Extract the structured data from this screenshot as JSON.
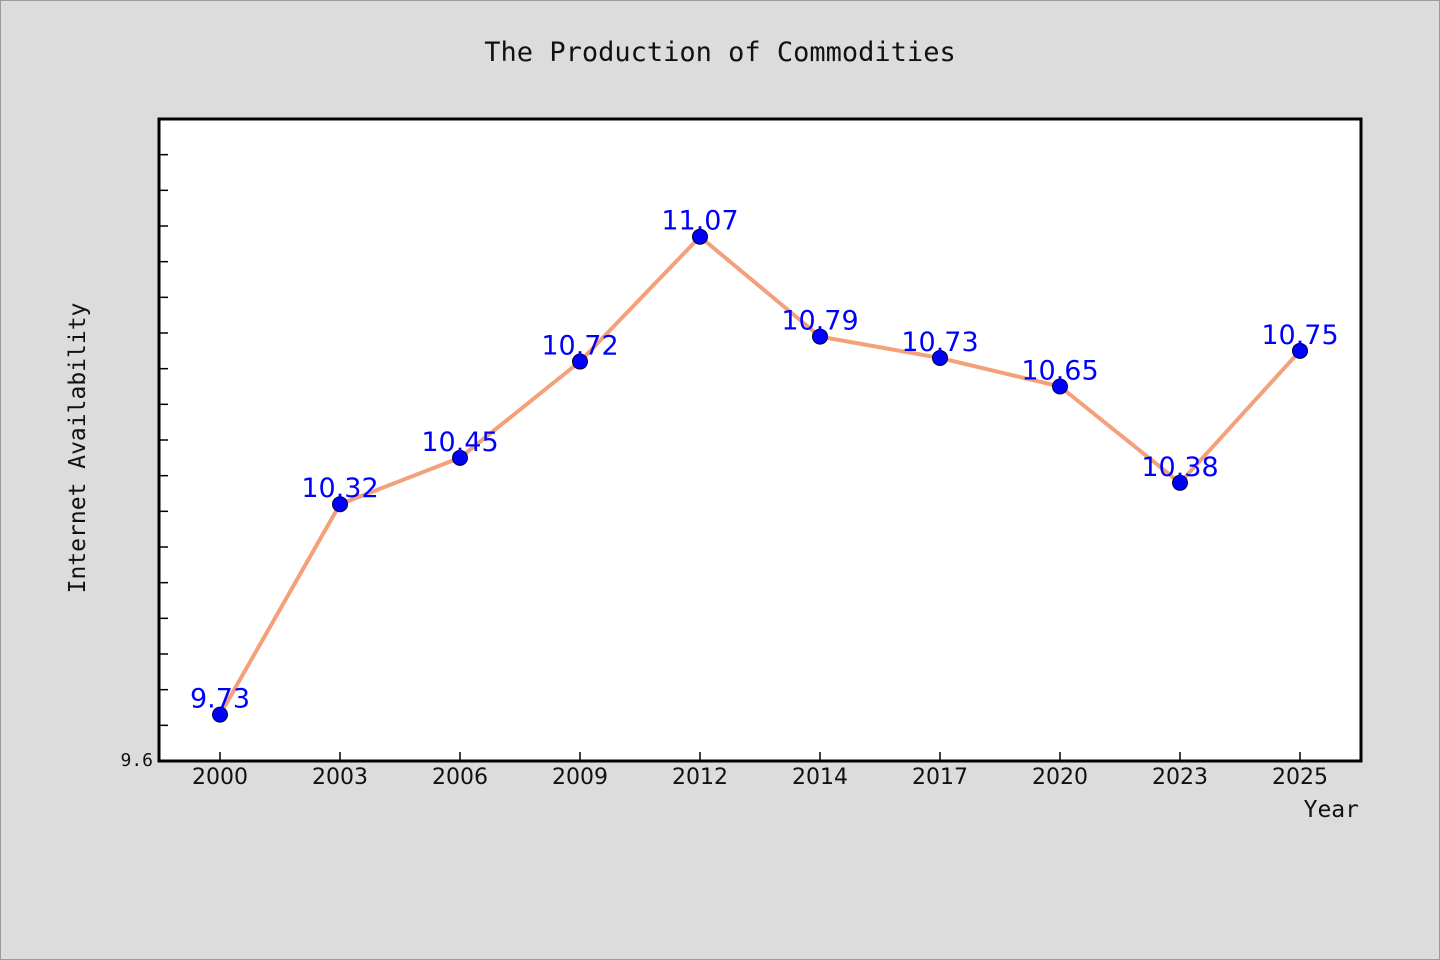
{
  "chart_data": {
    "type": "line",
    "title": "The Production of Commodities",
    "xlabel": "Year",
    "ylabel": "Internet Availability",
    "categories": [
      "2000",
      "2003",
      "2006",
      "2009",
      "2012",
      "2014",
      "2017",
      "2020",
      "2023",
      "2025"
    ],
    "series": [
      {
        "values": [
          9.73,
          10.32,
          10.45,
          10.72,
          11.07,
          10.79,
          10.73,
          10.65,
          10.38,
          10.75
        ],
        "data_labels": [
          "9.73",
          "10.32",
          "10.45",
          "10.72",
          "11.07",
          "10.79",
          "10.73",
          "10.65",
          "10.38",
          "10.75"
        ]
      }
    ],
    "ylim": [
      9.6,
      11.4
    ],
    "yticks_labeled": [
      "9.6"
    ],
    "grid": false,
    "colors": {
      "line": "#f4a07a",
      "marker": "#0000ff",
      "data_label": "#0000ff",
      "background": "#dcdcdc",
      "plot_background": "#ffffff"
    }
  }
}
